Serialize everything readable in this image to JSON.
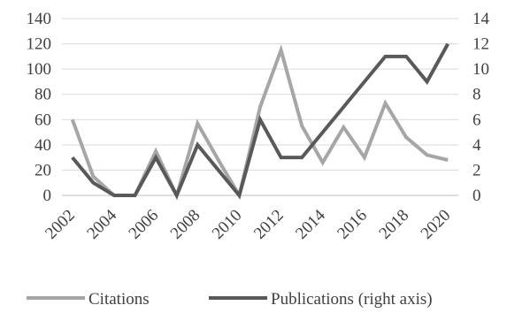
{
  "chart_data": {
    "type": "line",
    "x": [
      2003,
      2004,
      2005,
      2006,
      2007,
      2008,
      2009,
      2010,
      2011,
      2012,
      2013,
      2014,
      2015,
      2016,
      2017,
      2018,
      2019,
      2020
    ],
    "x_tick_labels": [
      "2002",
      "2004",
      "2006",
      "2008",
      "2010",
      "2012",
      "2014",
      "2016",
      "2018",
      "2020"
    ],
    "x_tick_values": [
      2002,
      2004,
      2006,
      2008,
      2010,
      2012,
      2014,
      2016,
      2018,
      2020
    ],
    "xlim": [
      2002,
      2021
    ],
    "ylim_left": [
      0,
      140
    ],
    "y_left_ticks": [
      0,
      20,
      40,
      60,
      80,
      100,
      120,
      140
    ],
    "ylim_right": [
      0,
      14
    ],
    "y_right_ticks": [
      0,
      2,
      4,
      6,
      8,
      10,
      12,
      14
    ],
    "grid": true,
    "legend_position": "bottom",
    "series": [
      {
        "name": "Citations",
        "axis": "left",
        "color": "#a6a6a6",
        "x": [
          2002.5,
          2003.5,
          2004.5,
          2005.5,
          2006.5,
          2007.5,
          2008.5,
          2009.5,
          2010.5,
          2011.5,
          2012.5,
          2013.5,
          2014.5,
          2015.5,
          2016.5,
          2017.5,
          2018.5,
          2019.5,
          2020.5
        ],
        "values": [
          60,
          15,
          0,
          0,
          35,
          0,
          57,
          28,
          0,
          70,
          115,
          55,
          26,
          54,
          30,
          73,
          46,
          32,
          28
        ]
      },
      {
        "name": "Publications (right axis)",
        "axis": "right",
        "color": "#595959",
        "x": [
          2002.5,
          2003.5,
          2004.5,
          2005.5,
          2006.5,
          2007.5,
          2008.5,
          2009.5,
          2010.5,
          2011.5,
          2012.5,
          2013.5,
          2014.5,
          2015.5,
          2016.5,
          2017.5,
          2018.5,
          2019.5,
          2020.5
        ],
        "values": [
          3,
          1,
          0,
          0,
          3,
          0,
          4,
          2,
          0,
          6,
          3,
          3,
          5,
          7,
          9,
          11,
          11,
          9,
          12
        ]
      }
    ]
  }
}
